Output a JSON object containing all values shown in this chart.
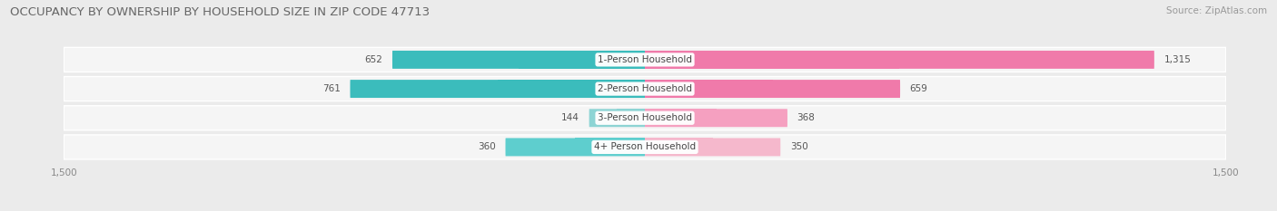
{
  "title": "OCCUPANCY BY OWNERSHIP BY HOUSEHOLD SIZE IN ZIP CODE 47713",
  "source": "Source: ZipAtlas.com",
  "categories": [
    "1-Person Household",
    "2-Person Household",
    "3-Person Household",
    "4+ Person Household"
  ],
  "owner_values": [
    652,
    761,
    144,
    360
  ],
  "renter_values": [
    1315,
    659,
    368,
    350
  ],
  "owner_colors": [
    "#3bbcbc",
    "#3bbcbc",
    "#8dd4d4",
    "#5ecece"
  ],
  "renter_colors": [
    "#f07aaa",
    "#f07aaa",
    "#f5a0c0",
    "#f5b8cc"
  ],
  "background_color": "#ebebeb",
  "bar_bg_color": "#e0e0e0",
  "row_bg_color": "#f5f5f5",
  "xlim": 1500,
  "title_fontsize": 9.5,
  "label_fontsize": 7.5,
  "tick_fontsize": 7.5,
  "source_fontsize": 7.5,
  "value_fontsize": 7.5
}
